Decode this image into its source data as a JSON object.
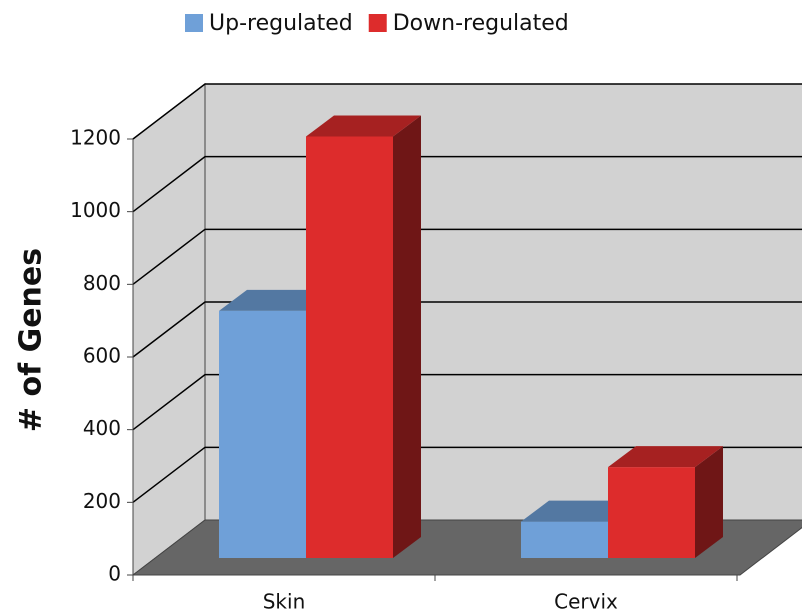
{
  "chart_data": {
    "type": "bar3d",
    "y_axis_label": "# of Genes",
    "categories": [
      "Skin",
      "Cervix"
    ],
    "series": [
      {
        "name": "Up-regulated",
        "color": "#6fa0d8",
        "values": [
          680,
          100
        ]
      },
      {
        "name": "Down-regulated",
        "color": "#dd2c2c",
        "values": [
          1160,
          250
        ]
      }
    ],
    "ylim": [
      0,
      1200
    ],
    "yticks": [
      0,
      200,
      400,
      600,
      800,
      1000,
      1200
    ],
    "grid": true,
    "legend": "top"
  }
}
